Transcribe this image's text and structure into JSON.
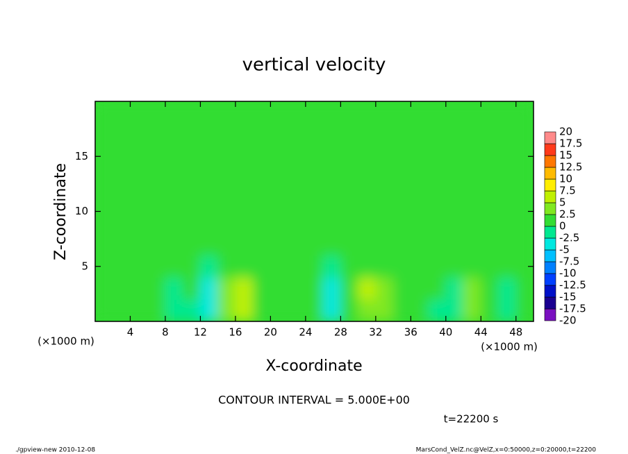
{
  "chart_data": {
    "type": "contour",
    "title": "vertical velocity",
    "x_label": "X-coordinate",
    "y_label": "Z-coordinate",
    "x_unit": "(×1000 m)",
    "y_unit": "(×1000 m)",
    "xlim": [
      0,
      50
    ],
    "ylim": [
      0,
      20
    ],
    "xticks": [
      4,
      8,
      12,
      16,
      20,
      24,
      28,
      32,
      36,
      40,
      44,
      48
    ],
    "yticks": [
      5,
      10,
      15
    ],
    "x": [
      1,
      3,
      5,
      7,
      9,
      11,
      13,
      15,
      17,
      19,
      21,
      23,
      25,
      27,
      29,
      31,
      33,
      35,
      37,
      39,
      41,
      43,
      45,
      47,
      49
    ],
    "y": [
      1,
      3,
      5,
      7,
      9,
      11,
      13,
      15,
      17,
      19
    ],
    "values": [
      [
        0.5,
        2,
        2,
        0,
        -2,
        -1,
        -3,
        3,
        5,
        1,
        0,
        0,
        0,
        -4,
        1,
        4,
        3,
        0,
        0,
        -1,
        -1,
        4,
        1,
        -2,
        0
      ],
      [
        0,
        1.5,
        2,
        0,
        -1,
        0,
        -3,
        4,
        6,
        1,
        0,
        0,
        0,
        -3,
        1,
        5,
        3,
        0,
        0,
        0,
        -1,
        3,
        1,
        -1,
        0
      ],
      [
        0,
        0.5,
        0.5,
        0,
        0,
        0,
        -2,
        1,
        2,
        0,
        0,
        0,
        0,
        -1,
        0,
        1,
        1,
        0,
        0,
        0,
        0,
        1,
        0,
        0,
        0
      ],
      [
        0,
        0.5,
        0,
        0.5,
        0,
        0,
        0,
        0.5,
        1,
        0,
        0,
        0,
        0,
        0,
        0.5,
        0,
        0,
        0,
        0,
        0,
        0,
        0.5,
        0,
        0,
        0
      ],
      [
        0,
        0,
        0.5,
        0,
        0,
        0,
        1,
        1.5,
        0.5,
        0,
        0,
        0,
        0,
        0.5,
        0,
        0.5,
        0,
        0,
        0,
        0,
        0,
        0,
        0,
        0,
        0
      ],
      [
        0,
        0,
        0,
        0,
        0,
        0.5,
        0,
        1,
        0,
        0,
        0,
        0,
        0,
        0,
        0.5,
        0,
        0,
        0,
        0.5,
        0,
        0,
        0,
        0,
        0.5,
        0
      ],
      [
        0.5,
        0,
        0,
        0,
        0,
        0,
        0,
        0.5,
        0.5,
        0,
        0,
        0,
        0.5,
        0,
        0,
        0.5,
        0,
        0,
        0,
        0,
        0,
        0,
        0.5,
        0,
        0
      ],
      [
        0,
        0,
        0.5,
        0,
        0,
        0,
        0,
        0,
        0,
        0,
        0,
        0,
        0,
        0.5,
        0,
        0.5,
        0,
        0.5,
        0,
        0,
        0,
        0,
        0,
        0,
        0.5
      ],
      [
        0,
        0,
        0,
        0,
        0.5,
        0,
        0,
        0,
        0,
        0,
        0,
        0,
        0,
        0,
        0,
        0,
        0,
        0,
        0,
        0,
        0,
        0,
        0,
        0,
        0
      ],
      [
        0,
        0,
        0,
        0,
        0,
        0,
        0,
        0,
        0,
        0,
        0,
        0,
        0,
        0,
        0,
        0,
        0,
        0,
        0,
        0,
        0,
        0,
        0,
        0,
        0
      ]
    ],
    "levels": [
      -20,
      -17.5,
      -15,
      -12.5,
      -10,
      -7.5,
      -5,
      -2.5,
      0,
      2.5,
      5,
      7.5,
      10,
      12.5,
      15,
      17.5,
      20
    ],
    "colors": [
      "#7a10c0",
      "#1a0090",
      "#0010c8",
      "#0040ff",
      "#0080ff",
      "#00c0ff",
      "#00e8e0",
      "#00e890",
      "#33dd33",
      "#80e820",
      "#c0f000",
      "#ffee00",
      "#ffbb00",
      "#ff7700",
      "#ff3a1a",
      "#ff8a8a"
    ],
    "contour_interval": "CONTOUR INTERVAL = 5.000E+00",
    "time_label": "t=22200 s",
    "footer_left": "./gpview-new  2010-12-08",
    "footer_right": "MarsCond_VelZ.nc@VelZ,x=0:50000,z=0:20000,t=22200"
  }
}
